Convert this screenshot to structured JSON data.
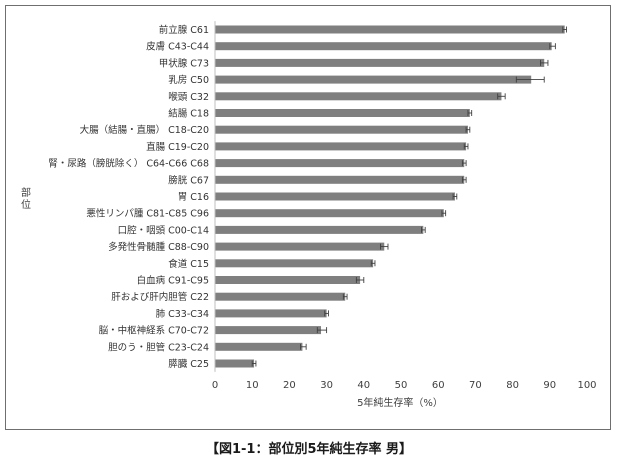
{
  "caption": "【図1-1：部位別5年純生存率 男】",
  "chart_data": {
    "type": "bar",
    "orientation": "horizontal",
    "title": "",
    "xlabel": "5年純生存率（%）",
    "ylabel": "部位",
    "xlim": [
      0,
      100
    ],
    "xticks": [
      "0",
      "10",
      "20",
      "30",
      "40",
      "50",
      "60",
      "70",
      "80",
      "90",
      "100"
    ],
    "grid": false,
    "legend": "none",
    "bar_color": "#7f7f7f",
    "categories": [
      "前立腺 C61",
      "皮膚 C43-C44",
      "甲状腺 C73",
      "乳房 C50",
      "喉頭 C32",
      "結腸 C18",
      "大腸（結腸・直腸） C18-C20",
      "直腸 C19-C20",
      "腎・尿路（膀胱除く） C64-C66 C68",
      "膀胱 C67",
      "胃 C16",
      "悪性リンパ腫 C81-C85 C96",
      "口腔・咽頭 C00-C14",
      "多発性骨髄腫 C88-C90",
      "食道 C15",
      "白血病 C91-C95",
      "肝および肝内胆管 C22",
      "肺 C33-C34",
      "脳・中枢神経系 C70-C72",
      "胆のう・胆管 C23-C24",
      "膵臓 C25"
    ],
    "values": [
      94.0,
      90.5,
      88.5,
      85.0,
      77.0,
      68.5,
      68.0,
      67.5,
      67.0,
      67.0,
      64.5,
      61.5,
      56.0,
      45.5,
      42.5,
      39.0,
      35.0,
      30.0,
      28.5,
      23.5,
      10.5
    ],
    "error_low": [
      93.5,
      90.0,
      87.5,
      81.0,
      76.0,
      68.0,
      67.5,
      67.0,
      66.5,
      66.5,
      64.0,
      61.0,
      55.5,
      44.5,
      42.0,
      38.0,
      34.5,
      29.5,
      27.5,
      23.0,
      10.0
    ],
    "error_high": [
      94.5,
      91.5,
      89.5,
      88.5,
      78.0,
      69.0,
      68.5,
      68.0,
      67.5,
      67.5,
      65.0,
      62.0,
      56.5,
      46.5,
      43.0,
      40.0,
      35.5,
      30.5,
      30.0,
      24.5,
      11.0
    ]
  }
}
